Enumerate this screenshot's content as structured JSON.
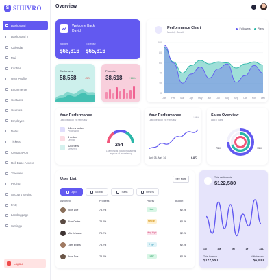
{
  "app": {
    "logo_text": "SHUVRO",
    "page_title": "Overview"
  },
  "sidebar": {
    "items": [
      {
        "label": "Dashboard"
      },
      {
        "label": "Dashboard 2"
      },
      {
        "label": "Calendar"
      },
      {
        "label": "Mail"
      },
      {
        "label": "Kanban"
      },
      {
        "label": "User Profile"
      },
      {
        "label": "Ecommerce"
      },
      {
        "label": "Contacts"
      },
      {
        "label": "Courses"
      },
      {
        "label": "Employee"
      },
      {
        "label": "Notes"
      },
      {
        "label": "Tickets"
      },
      {
        "label": "ContactsApp"
      },
      {
        "label": "Roll Base Access"
      },
      {
        "label": "Treeview"
      },
      {
        "label": "Pricing"
      },
      {
        "label": "Account Setting"
      },
      {
        "label": "FAQ"
      },
      {
        "label": "Landingpage"
      },
      {
        "label": "Settings"
      }
    ],
    "logout": "Logout"
  },
  "welcome": {
    "title_line1": "Welcome Back",
    "title_line2": "David",
    "budget_label": "Budget",
    "budget_value": "$66,816",
    "expense_label": "Expense",
    "expense_value": "$65,816"
  },
  "customers": {
    "label": "Customers",
    "value": "58,558",
    "change": "-26%"
  },
  "projects": {
    "label": "Projects",
    "value": "38,618",
    "change": "+26%"
  },
  "performance_chart": {
    "title": "Performance Chart",
    "subtitle": "Monthly Growth",
    "legend": [
      "Followers",
      "Plays"
    ],
    "months": [
      "Jan",
      "Feb",
      "Mar",
      "Apr",
      "May",
      "Jun",
      "Jul",
      "Aug",
      "Sep",
      "Oct",
      "Nov",
      "Dec"
    ],
    "y_ticks": [
      "100",
      "80",
      "60",
      "40",
      "20",
      "0"
    ]
  },
  "your_performance": {
    "title": "Your Performance",
    "subtitle": "Last check on 25 February",
    "rows": [
      {
        "main": "64 new orders",
        "sub": "Processing",
        "color": "#6259f0"
      },
      {
        "main": "4 orders",
        "sub": "On hold",
        "color": "#f2557a"
      },
      {
        "main": "12 orders",
        "sub": "Delivered",
        "color": "#2bb7a8"
      }
    ],
    "gauge_value": "254",
    "gauge_text": "Learn insigs how to manage all aspects of your startup."
  },
  "your_performance_2": {
    "title": "Your Performance",
    "subtitle": "Last check on 25 February",
    "change": "+26%",
    "footer_left": "April 08- April 14",
    "footer_right": "6,877"
  },
  "sales_overview": {
    "title": "Sales Overview",
    "subtitle": "Last 7 days",
    "left_pct": "75%",
    "right_pct": "15%"
  },
  "user_list": {
    "title": "User List",
    "see_more": "See More",
    "tabs": [
      "App",
      "Mobail",
      "Saas",
      "Others"
    ],
    "headers": [
      "Assigned",
      "Progress",
      "Priority",
      "Budget"
    ],
    "rows": [
      {
        "name": "John Doe",
        "progress": "78.2%",
        "priority": "Low",
        "budget": "$2.2k",
        "pbg": "#d8f6e6",
        "pfg": "#1f9d5b"
      },
      {
        "name": "Alon Carter",
        "progress": "78.2%",
        "priority": "Medium",
        "budget": "$2.2k",
        "pbg": "#fff0cf",
        "pfg": "#d08a00"
      },
      {
        "name": "Mia Johnson",
        "progress": "78.2%",
        "priority": "Very High",
        "budget": "$2.2k",
        "pbg": "#fbe0ea",
        "pfg": "#d13b6c"
      },
      {
        "name": "Liam Evans",
        "progress": "78.2%",
        "priority": "High",
        "budget": "$2.2k",
        "pbg": "#dff3f8",
        "pfg": "#1d8fb0"
      },
      {
        "name": "John Doe",
        "progress": "78.2%",
        "priority": "Low",
        "budget": "$2.2k",
        "pbg": "#d8f6e6",
        "pfg": "#1f9d5b"
      }
    ]
  },
  "settlement": {
    "label": "Total settlements",
    "value": "$122,580",
    "months": [
      "1M",
      "3M",
      "6M",
      "1Y",
      "ALL"
    ],
    "balance_label": "Total balance",
    "balance_value": "$122,580",
    "withdrawals_label": "Withdrawals",
    "withdrawals_value": "$6,000"
  },
  "colors": {
    "primary": "#6259f0",
    "teal": "#2bb7a8",
    "pink": "#f2557a"
  },
  "chart_data": [
    {
      "type": "area",
      "title": "Performance Chart",
      "x": [
        "Jan",
        "Feb",
        "Mar",
        "Apr",
        "May",
        "Jun",
        "Jul",
        "Aug",
        "Sep",
        "Oct",
        "Nov",
        "Dec"
      ],
      "ylim": [
        0,
        100
      ],
      "series": [
        {
          "name": "Followers",
          "values": [
            95,
            60,
            20,
            38,
            52,
            30,
            48,
            58,
            22,
            35,
            55,
            40
          ]
        },
        {
          "name": "Plays",
          "values": [
            90,
            62,
            40,
            55,
            65,
            58,
            62,
            60,
            50,
            58,
            62,
            56
          ]
        }
      ],
      "legend": "top-right",
      "grid": true
    },
    {
      "type": "line",
      "title": "Total settlements",
      "x": [
        "1",
        "2",
        "3",
        "4",
        "5",
        "6",
        "7",
        "8",
        "9",
        "10"
      ],
      "series": [
        {
          "values": [
            55,
            20,
            85,
            30,
            80,
            15,
            60,
            35,
            90,
            40
          ]
        }
      ]
    }
  ]
}
